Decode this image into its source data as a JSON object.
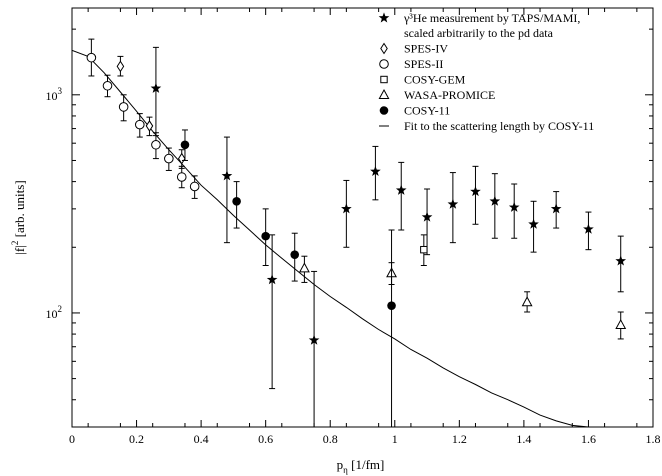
{
  "chart_data": {
    "type": "scatter",
    "xlabel": "p",
    "xlabel_sub": "η",
    "xlabel_unit": "[1/fm]",
    "ylabel": "|f|",
    "ylabel_sup": "2",
    "ylabel_unit": "[arb. units]",
    "xlim": [
      0,
      1.8
    ],
    "ylim": [
      30,
      2500
    ],
    "yscale": "log",
    "grid": false,
    "legend_position": "top-right",
    "x_ticks": [
      {
        "v": 0,
        "label": "0"
      },
      {
        "v": 0.2,
        "label": "0.2"
      },
      {
        "v": 0.4,
        "label": "0.4"
      },
      {
        "v": 0.6,
        "label": "0.6"
      },
      {
        "v": 0.8,
        "label": "0.8"
      },
      {
        "v": 1,
        "label": "1"
      },
      {
        "v": 1.2,
        "label": "1.2"
      },
      {
        "v": 1.4,
        "label": "1.4"
      },
      {
        "v": 1.6,
        "label": "1.6"
      },
      {
        "v": 1.8,
        "label": "1.8"
      }
    ],
    "y_major_ticks": [
      {
        "v": 100,
        "base": "10",
        "exp": "2"
      },
      {
        "v": 1000,
        "base": "10",
        "exp": "3"
      }
    ],
    "series": [
      {
        "name": "γ³He measurement by TAPS/MAMI, scaled arbitrarily to the pd data",
        "legend_line1": "γ³He measurement by TAPS/MAMI,",
        "legend_line2": "scaled arbitrarily to the pd data",
        "marker": "star",
        "points": [
          {
            "x": 0.26,
            "y": 1070,
            "lo": 650,
            "hi": 1650
          },
          {
            "x": 0.48,
            "y": 425,
            "lo": 210,
            "hi": 640
          },
          {
            "x": 0.62,
            "y": 142,
            "lo": 45,
            "hi": 228
          },
          {
            "x": 0.75,
            "y": 75,
            "lo": 30,
            "hi": 155
          },
          {
            "x": 0.85,
            "y": 300,
            "lo": 200,
            "hi": 405
          },
          {
            "x": 0.94,
            "y": 445,
            "lo": 330,
            "hi": 580
          },
          {
            "x": 1.02,
            "y": 365,
            "lo": 240,
            "hi": 490
          },
          {
            "x": 1.1,
            "y": 275,
            "lo": 185,
            "hi": 370
          },
          {
            "x": 1.18,
            "y": 315,
            "lo": 210,
            "hi": 440
          },
          {
            "x": 1.25,
            "y": 360,
            "lo": 255,
            "hi": 470
          },
          {
            "x": 1.31,
            "y": 325,
            "lo": 220,
            "hi": 435
          },
          {
            "x": 1.37,
            "y": 305,
            "lo": 220,
            "hi": 390
          },
          {
            "x": 1.43,
            "y": 255,
            "lo": 190,
            "hi": 325
          },
          {
            "x": 1.5,
            "y": 300,
            "lo": 245,
            "hi": 360
          },
          {
            "x": 1.6,
            "y": 242,
            "lo": 195,
            "hi": 290
          },
          {
            "x": 1.7,
            "y": 173,
            "lo": 125,
            "hi": 225
          }
        ]
      },
      {
        "name": "SPES-IV",
        "marker": "diamond",
        "points": [
          {
            "x": 0.15,
            "y": 1350,
            "lo": 1220,
            "hi": 1500
          },
          {
            "x": 0.24,
            "y": 720,
            "lo": 650,
            "hi": 790
          },
          {
            "x": 0.34,
            "y": 510,
            "lo": 460,
            "hi": 560
          }
        ]
      },
      {
        "name": "SPES-II",
        "marker": "open-circle",
        "points": [
          {
            "x": 0.06,
            "y": 1480,
            "lo": 1220,
            "hi": 1800
          },
          {
            "x": 0.11,
            "y": 1100,
            "lo": 980,
            "hi": 1230
          },
          {
            "x": 0.16,
            "y": 880,
            "lo": 760,
            "hi": 1000
          },
          {
            "x": 0.21,
            "y": 730,
            "lo": 640,
            "hi": 820
          },
          {
            "x": 0.26,
            "y": 590,
            "lo": 510,
            "hi": 670
          },
          {
            "x": 0.3,
            "y": 510,
            "lo": 450,
            "hi": 570
          },
          {
            "x": 0.34,
            "y": 420,
            "lo": 375,
            "hi": 470
          },
          {
            "x": 0.38,
            "y": 380,
            "lo": 335,
            "hi": 425
          }
        ]
      },
      {
        "name": "COSY-GEM",
        "marker": "open-square",
        "points": [
          {
            "x": 1.09,
            "y": 195,
            "lo": 165,
            "hi": 228
          }
        ]
      },
      {
        "name": "WASA-PROMICE",
        "marker": "open-triangle",
        "points": [
          {
            "x": 0.72,
            "y": 160,
            "lo": 138,
            "hi": 182
          },
          {
            "x": 0.99,
            "y": 152,
            "lo": 135,
            "hi": 170
          },
          {
            "x": 1.41,
            "y": 112,
            "lo": 101,
            "hi": 125
          },
          {
            "x": 1.7,
            "y": 88,
            "lo": 76,
            "hi": 101
          }
        ]
      },
      {
        "name": "COSY-11",
        "marker": "filled-circle",
        "points": [
          {
            "x": 0.35,
            "y": 590,
            "lo": 500,
            "hi": 690
          },
          {
            "x": 0.51,
            "y": 325,
            "lo": 245,
            "hi": 400
          },
          {
            "x": 0.6,
            "y": 225,
            "lo": 165,
            "hi": 300
          },
          {
            "x": 0.69,
            "y": 185,
            "lo": 140,
            "hi": 232
          },
          {
            "x": 0.99,
            "y": 108,
            "lo": 30,
            "hi": 240
          }
        ]
      },
      {
        "name": "Fit to the scattering length by COSY-11",
        "marker": "line",
        "x": [
          0,
          0.05,
          0.1,
          0.15,
          0.2,
          0.25,
          0.3,
          0.35,
          0.4,
          0.45,
          0.5,
          0.55,
          0.6,
          0.65,
          0.7,
          0.75,
          0.8,
          0.85,
          0.9,
          0.95,
          1.0,
          1.05,
          1.1,
          1.15,
          1.2,
          1.25,
          1.3,
          1.35,
          1.4,
          1.45,
          1.5,
          1.55,
          1.6,
          1.65
        ],
        "y": [
          1600,
          1500,
          1260,
          1030,
          840,
          680,
          560,
          465,
          385,
          330,
          280,
          240,
          205,
          178,
          155,
          135,
          119,
          106,
          94,
          84,
          76,
          68,
          62,
          56,
          51,
          47,
          43,
          40,
          37,
          34,
          32,
          30.5,
          29,
          28
        ]
      }
    ]
  }
}
